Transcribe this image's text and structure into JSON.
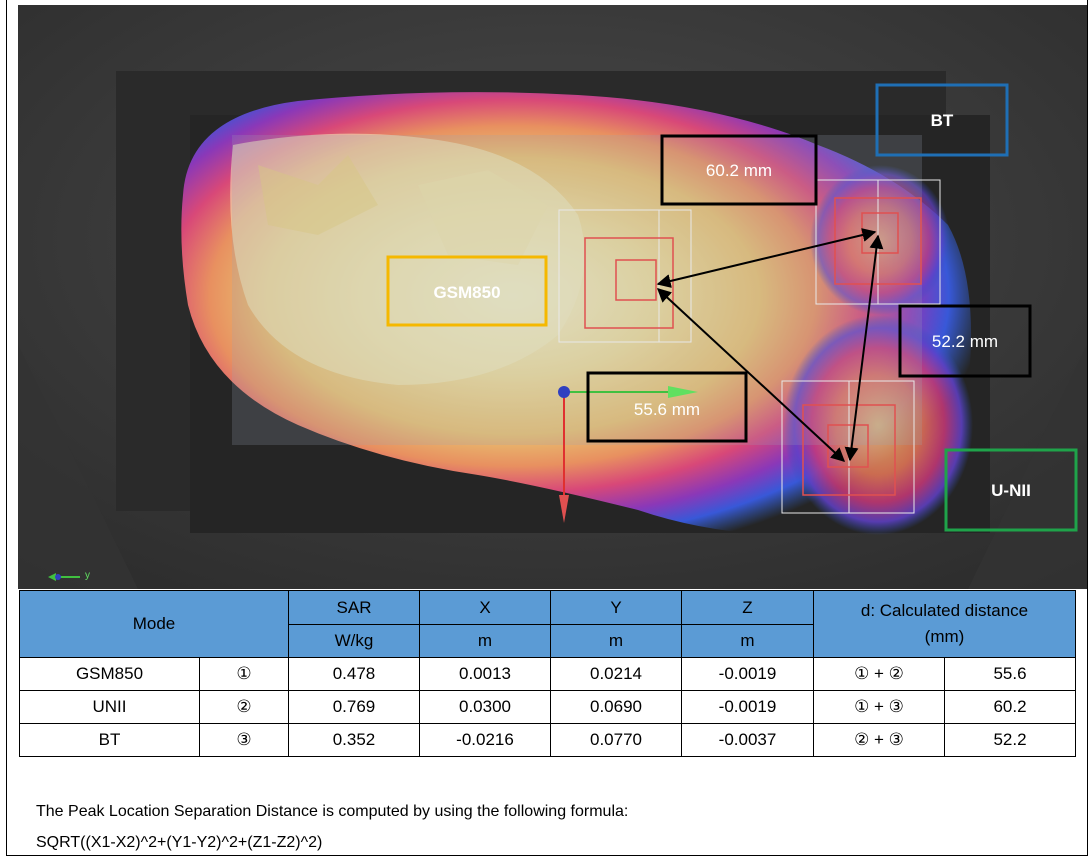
{
  "viewport": {
    "labels": {
      "gsm": "GSM850",
      "bt": "BT",
      "unii": "U-NII",
      "d12": "55.6 mm",
      "d13": "60.2 mm",
      "d23": "52.2 mm",
      "axis_y": "y"
    },
    "colors": {
      "gsm_box": "#f5b800",
      "bt_box": "#1f6fb5",
      "unii_box": "#1fa34a",
      "dist_box": "#000000",
      "peak_marker": "#e03030",
      "background": "#3a3a3a"
    }
  },
  "table": {
    "header_row1": {
      "mode": "Mode",
      "sar": "SAR",
      "x": "X",
      "y": "Y",
      "z": "Z",
      "d": "d: Calculated distance",
      "d_unit": "(mm)"
    },
    "header_row2": {
      "sar_unit": "W/kg",
      "x_unit": "m",
      "y_unit": "m",
      "z_unit": "m"
    },
    "rows": [
      {
        "mode": "GSM850",
        "idx": "①",
        "sar": "0.478",
        "x": "0.0013",
        "y": "0.0214",
        "z": "-0.0019",
        "pair": "① + ②",
        "dist": "55.6"
      },
      {
        "mode": "UNII",
        "idx": "②",
        "sar": "0.769",
        "x": "0.0300",
        "y": "0.0690",
        "z": "-0.0019",
        "pair": "① + ③",
        "dist": "60.2"
      },
      {
        "mode": "BT",
        "idx": "③",
        "sar": "0.352",
        "x": "-0.0216",
        "y": "0.0770",
        "z": "-0.0037",
        "pair": "② + ③",
        "dist": "52.2"
      }
    ]
  },
  "notes": {
    "line1": "The Peak Location Separation Distance is computed by using the following formula:",
    "line2": "SQRT((X1-X2)^2+(Y1-Y2)^2+(Z1-Z2)^2)"
  }
}
